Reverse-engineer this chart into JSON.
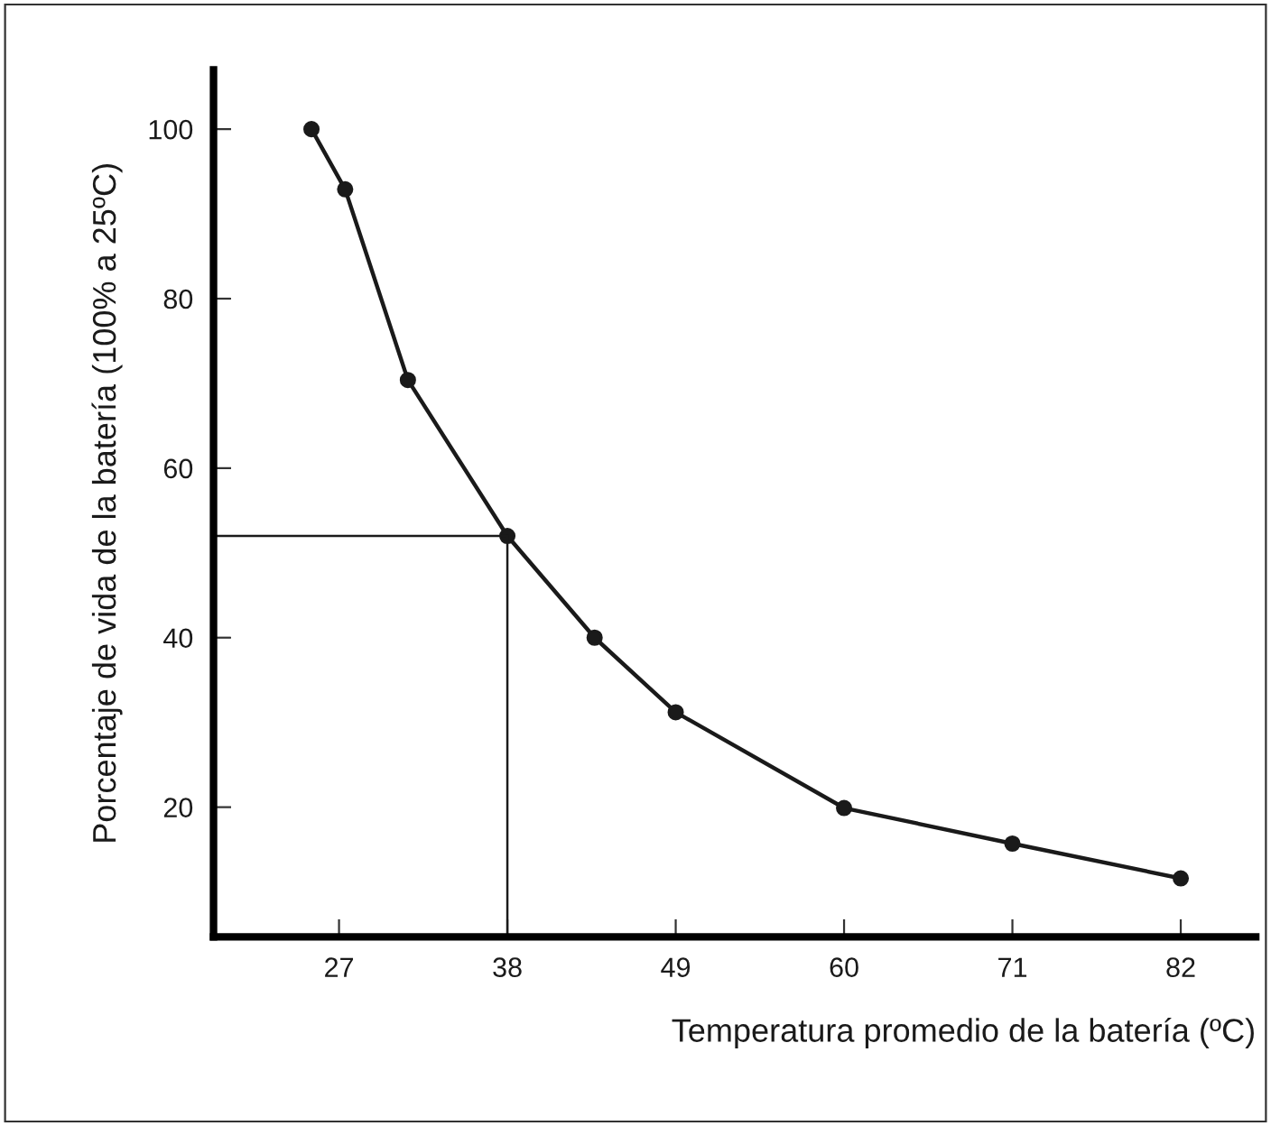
{
  "chart_data": {
    "type": "line",
    "xlabel": "Temperatura promedio de la batería (ºC)",
    "ylabel": "Porcentaje de vida de la batería (100% a 25ºC)",
    "x": [
      25.2,
      27.4,
      31.5,
      38,
      43.7,
      49,
      60,
      71,
      82
    ],
    "series": [
      {
        "color": "#1a1a1a",
        "values": [
          100,
          92.9,
          70.4,
          52,
          40,
          31.2,
          19.9,
          15.7,
          11.6
        ]
      }
    ],
    "marker": "circle",
    "line_style": "solid",
    "xlim": [
      18.8,
      86.9
    ],
    "ylim": [
      4.7,
      107
    ],
    "xticks": [
      27,
      38,
      49,
      60,
      71,
      82
    ],
    "yticks": [
      20,
      40,
      60,
      80,
      100
    ],
    "ref_lines": [
      {
        "axis": "y",
        "value": 52,
        "color": "#1a1a1a"
      },
      {
        "axis": "x",
        "value": 38,
        "color": "#1a1a1a"
      }
    ],
    "grid": false
  }
}
